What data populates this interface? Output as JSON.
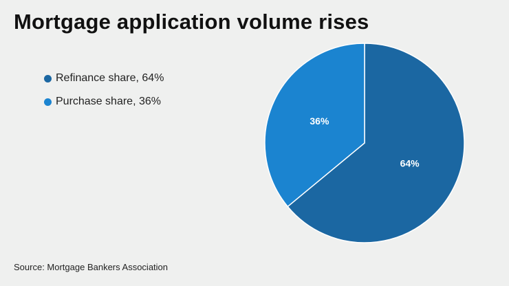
{
  "chart_data": {
    "type": "pie",
    "title": "Mortgage application volume rises",
    "slices": [
      {
        "label": "Refinance share, 64%",
        "value": 64,
        "data_label": "64%",
        "color": "#1b67a2"
      },
      {
        "label": "Purchase share, 36%",
        "value": 36,
        "data_label": "36%",
        "color": "#1b84d0"
      }
    ],
    "legend_placement": "left"
  },
  "source": "Source: Mortgage Bankers Association"
}
